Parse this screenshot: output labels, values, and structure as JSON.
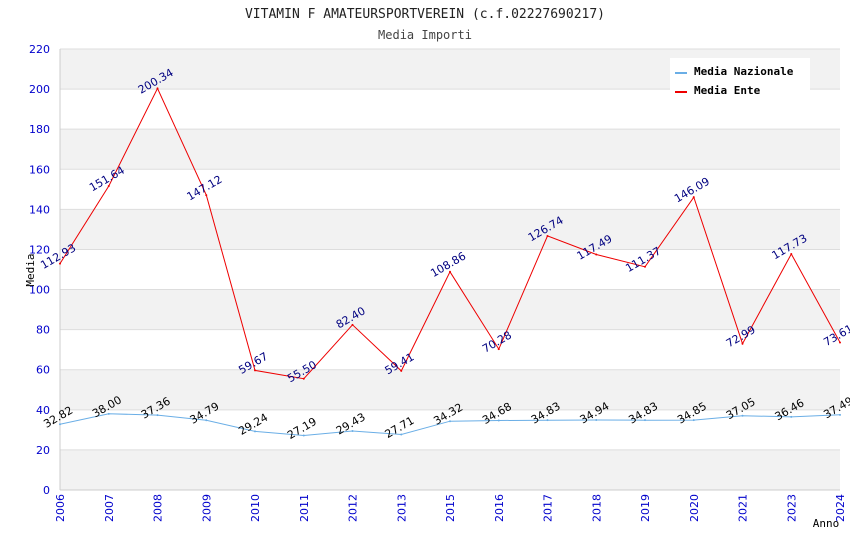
{
  "chart_data": {
    "type": "line",
    "title": "VITAMIN F AMATEURSPORTVEREIN (c.f.02227690217)",
    "subtitle": "Media Importi",
    "xlabel": "Anno",
    "ylabel": "Media",
    "ylim": [
      0,
      220
    ],
    "yticks": [
      0,
      20,
      40,
      60,
      80,
      100,
      120,
      140,
      160,
      180,
      200,
      220
    ],
    "categories": [
      "2006",
      "2007",
      "2008",
      "2009",
      "2010",
      "2011",
      "2012",
      "2013",
      "2015",
      "2016",
      "2017",
      "2018",
      "2019",
      "2020",
      "2021",
      "2023",
      "2024"
    ],
    "series": [
      {
        "name": "Media Nazionale",
        "color": "#6aaee6",
        "values": [
          32.82,
          38.0,
          37.36,
          34.79,
          29.24,
          27.19,
          29.43,
          27.71,
          34.32,
          34.68,
          34.83,
          34.94,
          34.83,
          34.85,
          37.05,
          36.46,
          37.49
        ],
        "labels": [
          "32.82",
          "38.00",
          "37.36",
          "34.79",
          "29.24",
          "27.19",
          "29.43",
          "27.71",
          "34.32",
          "34.68",
          "34.83",
          "34.94",
          "34.83",
          "34.85",
          "37.05",
          "36.46",
          "37.49"
        ]
      },
      {
        "name": "Media Ente",
        "color": "#ee0000",
        "values": [
          112.93,
          151.64,
          200.34,
          147.12,
          59.67,
          55.5,
          82.4,
          59.41,
          108.86,
          70.28,
          126.74,
          117.49,
          111.37,
          146.09,
          72.99,
          117.73,
          73.61
        ],
        "labels": [
          "112.93",
          "151.64",
          "200.34",
          "147.12",
          "59.67",
          "55.50",
          "82.40",
          "59.41",
          "108.86",
          "70.28",
          "126.74",
          "117.49",
          "111.37",
          "146.09",
          "72.99",
          "117.73",
          "73.61"
        ]
      }
    ],
    "legend": "top-right",
    "grid": true
  }
}
